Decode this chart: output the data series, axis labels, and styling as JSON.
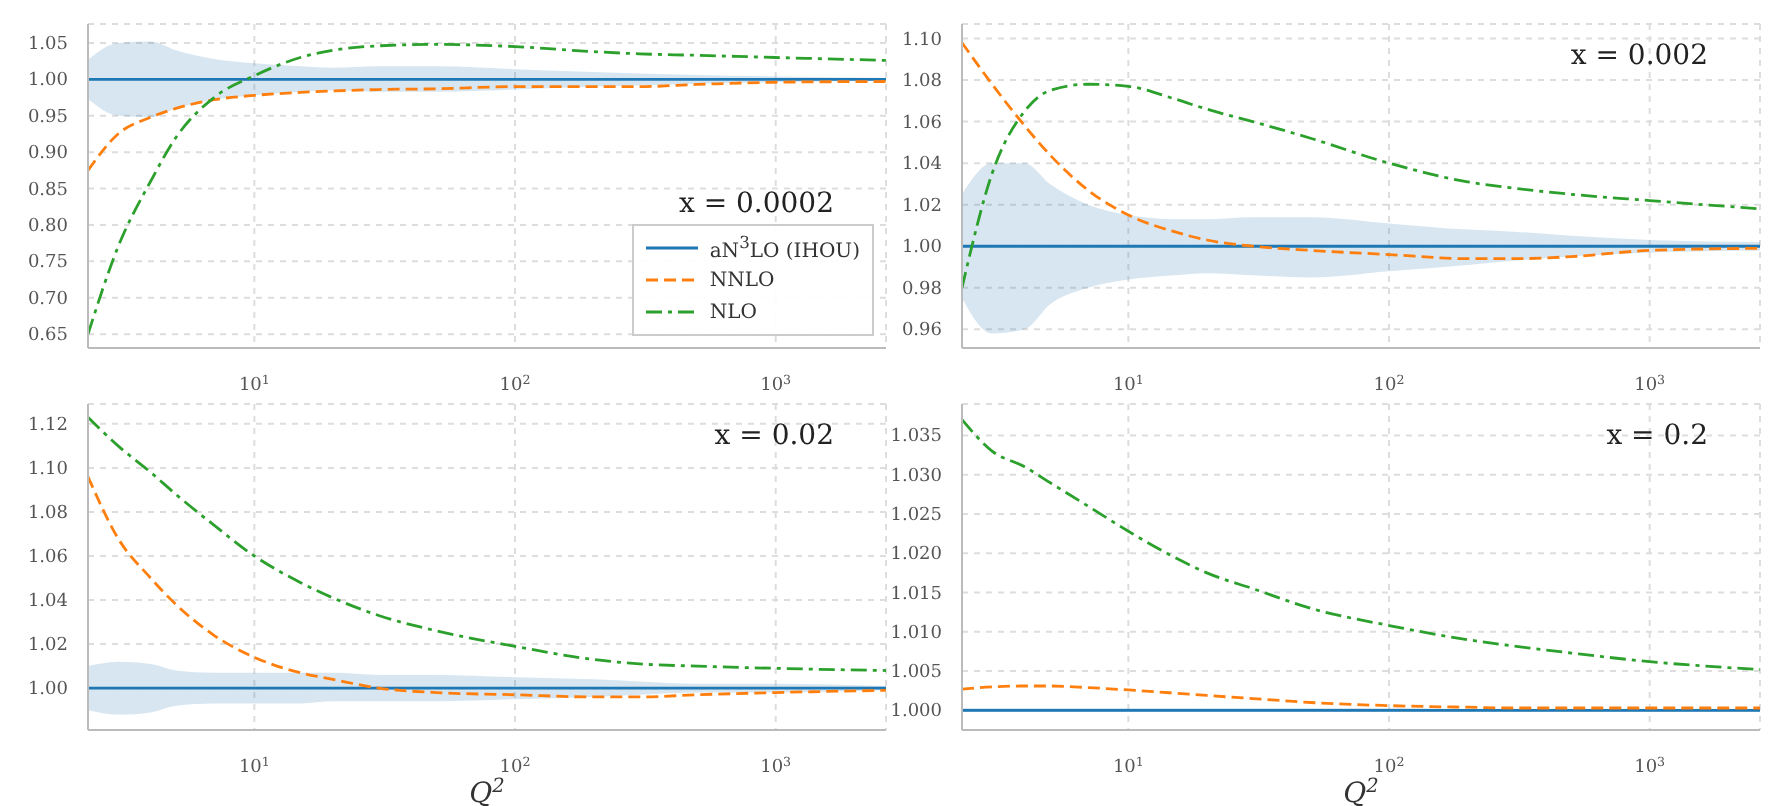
{
  "chart_data": [
    {
      "type": "line",
      "x": [
        2.3,
        3,
        4,
        5,
        7,
        10,
        15,
        20,
        30,
        50,
        100,
        200,
        300,
        500,
        1000,
        2650
      ],
      "log": "x",
      "grid": true,
      "legend": "bottom right",
      "annotations": [
        "x = 0.0002"
      ],
      "xlim": [
        2.3,
        2650
      ],
      "xticks": [
        {
          "value": 10,
          "label": "10$^{1}$"
        },
        {
          "value": 100,
          "label": "10$^{2}$"
        },
        {
          "value": 1000,
          "label": "10$^{3}$"
        }
      ],
      "ylim": [
        0.631,
        1.076
      ],
      "yticks": [
        {
          "value": 0.65,
          "label": "0.65"
        },
        {
          "value": 0.7,
          "label": "0.70"
        },
        {
          "value": 0.75,
          "label": "0.75"
        },
        {
          "value": 0.8,
          "label": "0.80"
        },
        {
          "value": 0.85,
          "label": "0.85"
        },
        {
          "value": 0.9,
          "label": "0.90"
        },
        {
          "value": 0.95,
          "label": "0.95"
        },
        {
          "value": 1,
          "label": "1.00"
        },
        {
          "value": 1.05,
          "label": "1.05"
        }
      ],
      "series": [
        {
          "name": "aN$^{3}$LO (IHOU)",
          "color": "#1f77b4",
          "line_style": "solid",
          "values": [
            1,
            1,
            1,
            1,
            1,
            1,
            1,
            1,
            1,
            1,
            1,
            1,
            1,
            1,
            1,
            1
          ],
          "upper": [
            1.027,
            1.05,
            1.052,
            1.04,
            1.028,
            1.022,
            1.018,
            1.016,
            1.018,
            1.018,
            1.014,
            1.01,
            1.008,
            1.006,
            1.004,
            1.002
          ],
          "lower": [
            0.973,
            0.95,
            0.948,
            0.96,
            0.972,
            0.978,
            0.983,
            0.985,
            0.983,
            0.983,
            0.986,
            0.99,
            0.992,
            0.994,
            0.996,
            0.998
          ]
        },
        {
          "name": "NNLO",
          "color": "#ff7f0e",
          "line_style": "dashed",
          "values": [
            0.875,
            0.925,
            0.948,
            0.96,
            0.972,
            0.978,
            0.982,
            0.984,
            0.986,
            0.987,
            0.99,
            0.99,
            0.99,
            0.993,
            0.996,
            0.997
          ]
        },
        {
          "name": "NLO",
          "color": "#2ca02c",
          "line_style": "dashdot",
          "values": [
            0.65,
            0.77,
            0.86,
            0.92,
            0.975,
            1.005,
            1.03,
            1.04,
            1.046,
            1.048,
            1.045,
            1.038,
            1.035,
            1.033,
            1.03,
            1.026
          ]
        }
      ]
    },
    {
      "type": "line",
      "x": [
        2.3,
        3,
        4,
        5,
        7,
        10,
        15,
        20,
        30,
        50,
        100,
        200,
        300,
        500,
        1000,
        2650
      ],
      "log": "x",
      "grid": true,
      "annotations": [
        "x = 0.002"
      ],
      "xlim": [
        2.3,
        2650
      ],
      "xticks": [
        {
          "value": 10,
          "label": "10$^{1}$"
        },
        {
          "value": 100,
          "label": "10$^{2}$"
        },
        {
          "value": 1000,
          "label": "10$^{3}$"
        }
      ],
      "ylim": [
        0.951,
        1.107
      ],
      "yticks": [
        {
          "value": 0.96,
          "label": "0.96"
        },
        {
          "value": 0.98,
          "label": "0.98"
        },
        {
          "value": 1,
          "label": "1.00"
        },
        {
          "value": 1.02,
          "label": "1.02"
        },
        {
          "value": 1.04,
          "label": "1.04"
        },
        {
          "value": 1.06,
          "label": "1.06"
        },
        {
          "value": 1.08,
          "label": "1.08"
        },
        {
          "value": 1.1,
          "label": "1.10"
        }
      ],
      "series": [
        {
          "color": "#1f77b4",
          "line_style": "solid",
          "values": [
            1,
            1,
            1,
            1,
            1,
            1,
            1,
            1,
            1,
            1,
            1,
            1,
            1,
            1,
            1,
            1
          ],
          "upper": [
            1.025,
            1.04,
            1.04,
            1.03,
            1.02,
            1.015,
            1.013,
            1.013,
            1.014,
            1.014,
            1.011,
            1.008,
            1.007,
            1.005,
            1.003,
            1.002
          ],
          "lower": [
            0.975,
            0.958,
            0.96,
            0.972,
            0.98,
            0.984,
            0.986,
            0.987,
            0.986,
            0.985,
            0.988,
            0.991,
            0.993,
            0.995,
            0.997,
            0.998
          ]
        },
        {
          "color": "#ff7f0e",
          "line_style": "dashed",
          "values": [
            1.098,
            1.078,
            1.058,
            1.044,
            1.027,
            1.015,
            1.007,
            1.003,
            1.0,
            0.998,
            0.996,
            0.994,
            0.994,
            0.995,
            0.998,
            0.999
          ]
        },
        {
          "color": "#2ca02c",
          "line_style": "dashdot",
          "values": [
            0.98,
            1.035,
            1.065,
            1.075,
            1.078,
            1.077,
            1.071,
            1.066,
            1.06,
            1.052,
            1.04,
            1.031,
            1.028,
            1.025,
            1.022,
            1.018
          ]
        }
      ]
    },
    {
      "type": "line",
      "x": [
        2.3,
        3,
        4,
        5,
        7,
        10,
        15,
        20,
        30,
        50,
        100,
        200,
        300,
        500,
        1000,
        2650
      ],
      "log": "x",
      "grid": true,
      "annotations": [
        "x = 0.02"
      ],
      "xlabel": "Q$^{2}$",
      "xlim": [
        2.3,
        2650
      ],
      "xticks": [
        {
          "value": 10,
          "label": "10$^{1}$"
        },
        {
          "value": 100,
          "label": "10$^{2}$"
        },
        {
          "value": 1000,
          "label": "10$^{3}$"
        }
      ],
      "ylim": [
        0.981,
        1.129
      ],
      "yticks": [
        {
          "value": 1,
          "label": "1.00"
        },
        {
          "value": 1.02,
          "label": "1.02"
        },
        {
          "value": 1.04,
          "label": "1.04"
        },
        {
          "value": 1.06,
          "label": "1.06"
        },
        {
          "value": 1.08,
          "label": "1.08"
        },
        {
          "value": 1.1,
          "label": "1.10"
        },
        {
          "value": 1.12,
          "label": "1.12"
        }
      ],
      "series": [
        {
          "color": "#1f77b4",
          "line_style": "solid",
          "values": [
            1,
            1,
            1,
            1,
            1,
            1,
            1,
            1,
            1,
            1,
            1,
            1,
            1,
            1,
            1,
            1
          ],
          "upper": [
            1.01,
            1.012,
            1.011,
            1.008,
            1.007,
            1.007,
            1.007,
            1.007,
            1.006,
            1.006,
            1.005,
            1.004,
            1.003,
            1.002,
            1.002,
            1.001
          ],
          "lower": [
            0.99,
            0.988,
            0.989,
            0.992,
            0.993,
            0.993,
            0.993,
            0.994,
            0.994,
            0.994,
            0.995,
            0.996,
            0.997,
            0.998,
            0.998,
            0.999
          ]
        },
        {
          "color": "#ff7f0e",
          "line_style": "dashed",
          "values": [
            1.096,
            1.068,
            1.05,
            1.038,
            1.024,
            1.014,
            1.007,
            1.004,
            1.0,
            0.998,
            0.997,
            0.996,
            0.996,
            0.997,
            0.998,
            0.999
          ]
        },
        {
          "color": "#2ca02c",
          "line_style": "dashdot",
          "values": [
            1.123,
            1.11,
            1.098,
            1.088,
            1.074,
            1.06,
            1.048,
            1.041,
            1.033,
            1.026,
            1.019,
            1.013,
            1.011,
            1.01,
            1.009,
            1.008
          ]
        }
      ]
    },
    {
      "type": "line",
      "x": [
        2.3,
        3,
        4,
        5,
        7,
        10,
        15,
        20,
        30,
        50,
        100,
        200,
        300,
        500,
        1000,
        2650
      ],
      "log": "x",
      "grid": true,
      "annotations": [
        "x = 0.2"
      ],
      "xlabel": "Q$^{2}$",
      "xlim": [
        2.3,
        2650
      ],
      "xticks": [
        {
          "value": 10,
          "label": "10$^{1}$"
        },
        {
          "value": 100,
          "label": "10$^{2}$"
        },
        {
          "value": 1000,
          "label": "10$^{3}$"
        }
      ],
      "ylim": [
        0.9975,
        1.039
      ],
      "yticks": [
        {
          "value": 1,
          "label": "1.000"
        },
        {
          "value": 1.005,
          "label": "1.005"
        },
        {
          "value": 1.01,
          "label": "1.010"
        },
        {
          "value": 1.015,
          "label": "1.015"
        },
        {
          "value": 1.02,
          "label": "1.020"
        },
        {
          "value": 1.025,
          "label": "1.025"
        },
        {
          "value": 1.03,
          "label": "1.030"
        },
        {
          "value": 1.035,
          "label": "1.035"
        }
      ],
      "series": [
        {
          "color": "#1f77b4",
          "line_style": "solid",
          "values": [
            1,
            1,
            1,
            1,
            1,
            1,
            1,
            1,
            1,
            1,
            1,
            1,
            1,
            1,
            1,
            1
          ],
          "upper": [
            1.0003,
            1.0003,
            1.0003,
            1.0003,
            1.0003,
            1.0003,
            1.0003,
            1.0003,
            1.0003,
            1.0003,
            1.0003,
            1.0002,
            1.0002,
            1.0002,
            1.0002,
            1.0002
          ],
          "lower": [
            0.9998,
            0.9998,
            0.9998,
            0.9998,
            0.9998,
            0.9998,
            0.9998,
            0.9998,
            0.9998,
            0.9998,
            0.9998,
            0.9998,
            0.9998,
            0.9998,
            0.9998,
            0.9998
          ]
        },
        {
          "color": "#ff7f0e",
          "line_style": "dashed",
          "values": [
            1.0027,
            1.003,
            1.0031,
            1.0031,
            1.0029,
            1.0026,
            1.0022,
            1.0019,
            1.0015,
            1.001,
            1.0006,
            1.0004,
            1.0003,
            1.0003,
            1.0003,
            1.0003
          ]
        },
        {
          "color": "#2ca02c",
          "line_style": "dashdot",
          "values": [
            1.037,
            1.033,
            1.031,
            1.029,
            1.026,
            1.0228,
            1.0195,
            1.0175,
            1.0155,
            1.013,
            1.0108,
            1.009,
            1.0082,
            1.0073,
            1.0062,
            1.0052
          ]
        }
      ]
    }
  ]
}
